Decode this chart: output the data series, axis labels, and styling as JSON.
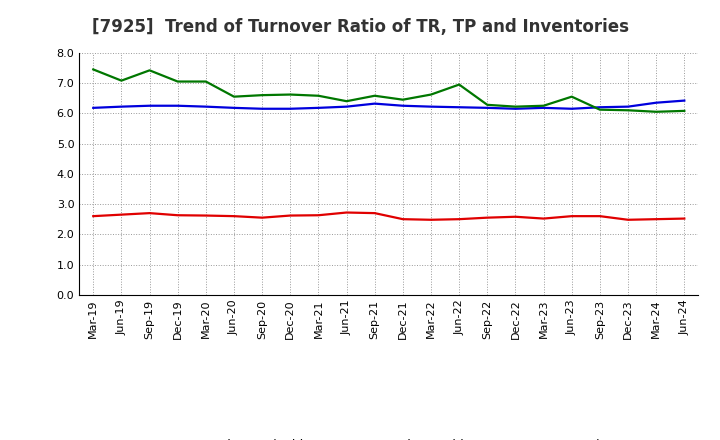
{
  "title": "[7925]  Trend of Turnover Ratio of TR, TP and Inventories",
  "x_labels": [
    "Mar-19",
    "Jun-19",
    "Sep-19",
    "Dec-19",
    "Mar-20",
    "Jun-20",
    "Sep-20",
    "Dec-20",
    "Mar-21",
    "Jun-21",
    "Sep-21",
    "Dec-21",
    "Mar-22",
    "Jun-22",
    "Sep-22",
    "Dec-22",
    "Mar-23",
    "Jun-23",
    "Sep-23",
    "Dec-23",
    "Mar-24",
    "Jun-24"
  ],
  "trade_receivables": [
    2.6,
    2.65,
    2.7,
    2.63,
    2.62,
    2.6,
    2.55,
    2.62,
    2.63,
    2.72,
    2.7,
    2.5,
    2.48,
    2.5,
    2.55,
    2.58,
    2.52,
    2.6,
    2.6,
    2.48,
    2.5,
    2.52
  ],
  "trade_payables": [
    6.18,
    6.22,
    6.25,
    6.25,
    6.22,
    6.18,
    6.15,
    6.15,
    6.18,
    6.22,
    6.32,
    6.25,
    6.22,
    6.2,
    6.18,
    6.15,
    6.18,
    6.15,
    6.2,
    6.22,
    6.35,
    6.42
  ],
  "inventories": [
    7.45,
    7.08,
    7.42,
    7.05,
    7.05,
    6.55,
    6.6,
    6.62,
    6.58,
    6.4,
    6.58,
    6.45,
    6.62,
    6.95,
    6.28,
    6.22,
    6.25,
    6.55,
    6.12,
    6.1,
    6.05,
    6.08
  ],
  "tr_color": "#e00000",
  "tp_color": "#0000dd",
  "inv_color": "#007700",
  "ylim": [
    0.0,
    8.0
  ],
  "yticks": [
    0.0,
    1.0,
    2.0,
    3.0,
    4.0,
    5.0,
    6.0,
    7.0,
    8.0
  ],
  "background_color": "#ffffff",
  "grid_color": "#999999",
  "line_width": 1.6,
  "title_fontsize": 12,
  "tick_fontsize": 8,
  "legend_fontsize": 9
}
